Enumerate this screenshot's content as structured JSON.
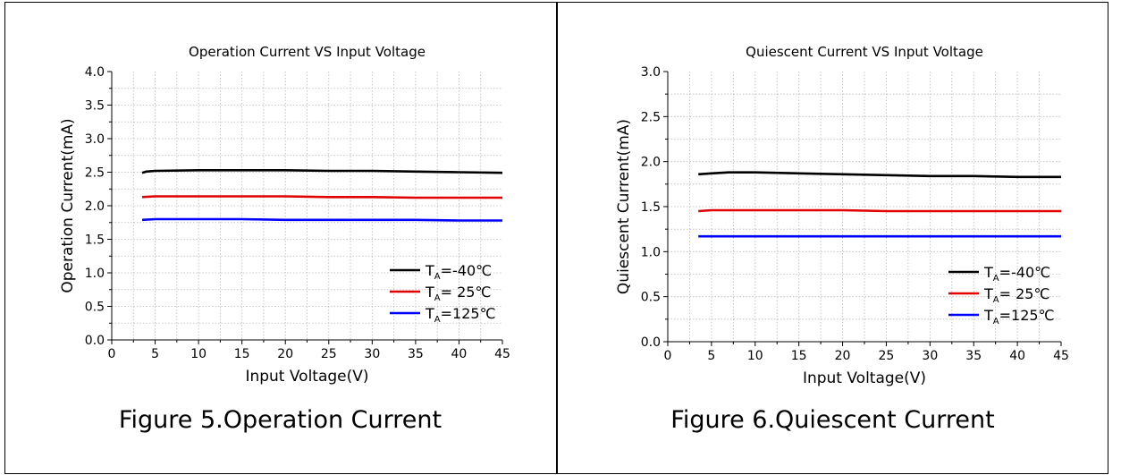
{
  "charts": [
    {
      "caption": "Figure 5.Operation Current",
      "chart_data": {
        "type": "line",
        "title": "Operation Current VS Input Voltage",
        "xlabel": "Input Voltage(V)",
        "ylabel": "Operation Current(mA)",
        "xlim": [
          0,
          45
        ],
        "ylim": [
          0.0,
          4.0
        ],
        "x_ticks": [
          "0",
          "5",
          "10",
          "15",
          "20",
          "25",
          "30",
          "35",
          "40",
          "45"
        ],
        "y_ticks": [
          "0.0",
          "0.5",
          "1.0",
          "1.5",
          "2.0",
          "2.5",
          "3.0",
          "3.5",
          "4.0"
        ],
        "grid": true,
        "legend_position": "bottom-right",
        "series": [
          {
            "name": "TA=-40℃",
            "name_main": "T",
            "name_sub": "A",
            "name_rest": "=-40℃",
            "color": "#000000",
            "x": [
              3.5,
              4,
              5,
              10,
              15,
              20,
              25,
              30,
              35,
              40,
              45
            ],
            "y": [
              2.49,
              2.51,
              2.52,
              2.53,
              2.53,
              2.53,
              2.52,
              2.52,
              2.51,
              2.5,
              2.49
            ]
          },
          {
            "name": "TA= 25℃",
            "name_main": "T",
            "name_sub": "A",
            "name_rest": "= 25℃",
            "color": "#e00000",
            "x": [
              3.5,
              5,
              10,
              15,
              20,
              25,
              30,
              35,
              40,
              45
            ],
            "y": [
              2.13,
              2.14,
              2.14,
              2.14,
              2.14,
              2.13,
              2.13,
              2.12,
              2.12,
              2.12
            ]
          },
          {
            "name": "TA=125℃",
            "name_main": "T",
            "name_sub": "A",
            "name_rest": "=125℃",
            "color": "#0000ff",
            "x": [
              3.5,
              5,
              10,
              15,
              20,
              25,
              30,
              35,
              40,
              45
            ],
            "y": [
              1.79,
              1.8,
              1.8,
              1.8,
              1.79,
              1.79,
              1.79,
              1.79,
              1.78,
              1.78
            ]
          }
        ]
      }
    },
    {
      "caption": "Figure 6.Quiescent Current",
      "chart_data": {
        "type": "line",
        "title": "Quiescent Current VS Input Voltage",
        "xlabel": "Input Voltage(V)",
        "ylabel": "Quiescent Current(mA)",
        "xlim": [
          0,
          45
        ],
        "ylim": [
          0.0,
          3.0
        ],
        "x_ticks": [
          "0",
          "5",
          "10",
          "15",
          "20",
          "25",
          "30",
          "35",
          "40",
          "45"
        ],
        "y_ticks": [
          "0.0",
          "0.5",
          "1.0",
          "1.5",
          "2.0",
          "2.5",
          "3.0"
        ],
        "grid": true,
        "legend_position": "bottom-right",
        "series": [
          {
            "name": "TA=-40℃",
            "name_main": "T",
            "name_sub": "A",
            "name_rest": "=-40℃",
            "color": "#000000",
            "x": [
              3.5,
              5,
              7,
              10,
              15,
              20,
              25,
              30,
              35,
              40,
              45
            ],
            "y": [
              1.86,
              1.87,
              1.88,
              1.88,
              1.87,
              1.86,
              1.85,
              1.84,
              1.84,
              1.83,
              1.83
            ]
          },
          {
            "name": "TA= 25℃",
            "name_main": "T",
            "name_sub": "A",
            "name_rest": "= 25℃",
            "color": "#e00000",
            "x": [
              3.5,
              5,
              10,
              15,
              20,
              25,
              30,
              35,
              40,
              45
            ],
            "y": [
              1.45,
              1.46,
              1.46,
              1.46,
              1.46,
              1.45,
              1.45,
              1.45,
              1.45,
              1.45
            ]
          },
          {
            "name": "TA=125℃",
            "name_main": "T",
            "name_sub": "A",
            "name_rest": "=125℃",
            "color": "#0000ff",
            "x": [
              3.5,
              5,
              10,
              15,
              20,
              25,
              30,
              35,
              40,
              45
            ],
            "y": [
              1.17,
              1.17,
              1.17,
              1.17,
              1.17,
              1.17,
              1.17,
              1.17,
              1.17,
              1.17
            ]
          }
        ]
      }
    }
  ]
}
